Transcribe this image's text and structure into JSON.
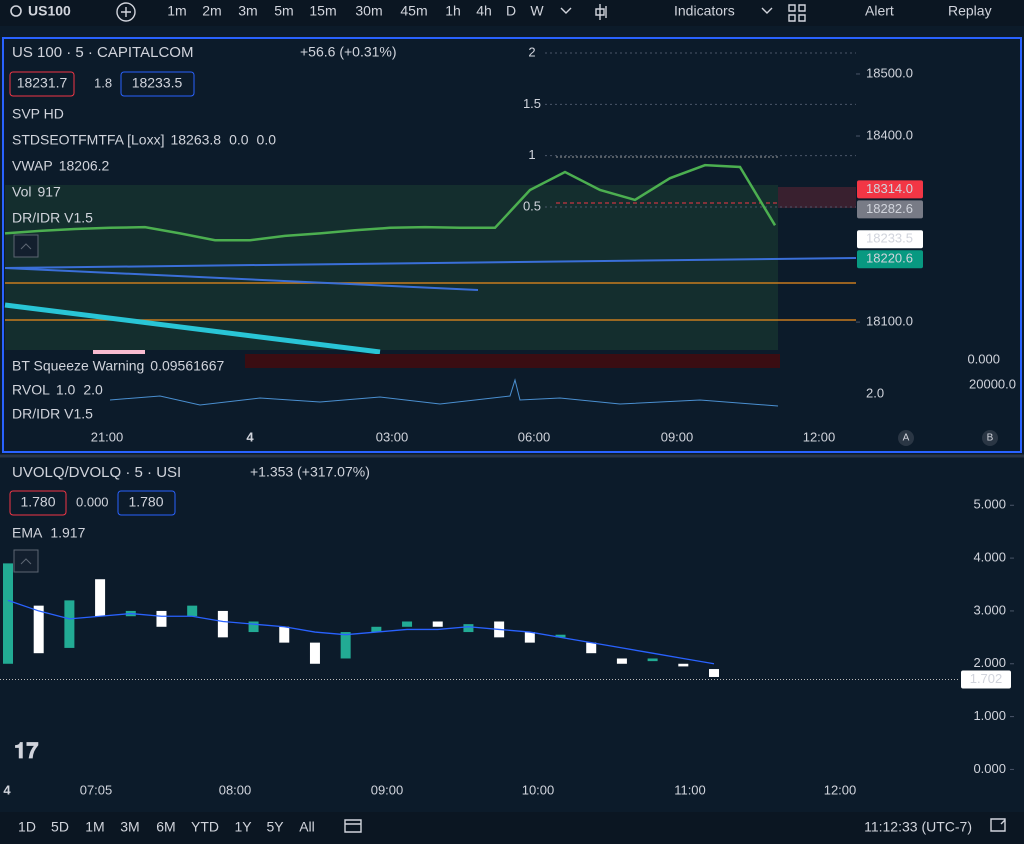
{
  "toolbar": {
    "symbol": "US100",
    "intervals": [
      "1m",
      "2m",
      "3m",
      "5m",
      "15m",
      "30m",
      "45m",
      "1h",
      "4h",
      "D",
      "W"
    ],
    "active_interval": 3,
    "indicators": "Indicators",
    "alert": "Alert",
    "replay": "Replay"
  },
  "main_pane": {
    "title": "US 100 · 5 · CAPITALCOM",
    "change": "+56.6 (+0.31%)",
    "bid": "18231.7",
    "spread": "1.8",
    "ask": "18233.5",
    "legend": [
      {
        "name": "SVP HD"
      },
      {
        "name": "STDSEOTFMTFA [Loxx]",
        "values": [
          "18263.8",
          "0.0",
          "0.0"
        ],
        "value_colors": [
          "#f23645",
          "#4caf50",
          "#f23645"
        ]
      },
      {
        "name": "VWAP",
        "values": [
          "18206.2"
        ],
        "value_colors": [
          "#b660cd"
        ]
      },
      {
        "name": "Vol",
        "values": [
          "917"
        ],
        "value_colors": [
          "#f23645"
        ]
      },
      {
        "name": "DR/IDR V1.5"
      }
    ],
    "left_scale": {
      "ylim": [
        0.5,
        2
      ],
      "ticks": [
        2,
        1.5,
        1,
        0.5
      ]
    },
    "ylim": [
      18055,
      18558
    ],
    "yticks": [
      {
        "value": 18500,
        "label": "18500.0"
      },
      {
        "value": 18400,
        "label": "18400.0"
      },
      {
        "value": 18100,
        "label": "18100.0"
      }
    ],
    "badges": [
      {
        "value": 18314,
        "label": "18314.0",
        "color": "#f23645"
      },
      {
        "value": 18282.6,
        "label": "18282.6",
        "color": "#787b86"
      },
      {
        "value": 18233.5,
        "label": "18233.5",
        "color": "#ffffff"
      },
      {
        "value": 18220.6,
        "label": "18220.6",
        "color": "#089981"
      }
    ],
    "price": [
      18243,
      18247,
      18250,
      18252,
      18253,
      18243,
      18232,
      18232,
      18239,
      18243,
      18248,
      18252,
      18253,
      18252,
      18252,
      18313,
      18342,
      18313,
      18297,
      18332,
      18353,
      18350,
      18256
    ],
    "price_color": "#4caf50",
    "sub_legend": [
      {
        "name": "BT Squeeze Warning",
        "values": [
          "0.09561667"
        ],
        "value_colors": [
          "#f23645"
        ]
      },
      {
        "name": "RVOL",
        "values": [
          "1.0",
          "2.0"
        ],
        "value_colors": [
          "#2962ff",
          "#2962ff"
        ]
      },
      {
        "name": "DR/IDR V1.5"
      }
    ],
    "sub_axis_labels": [
      "0.000",
      "20000.0",
      "2.0"
    ],
    "time_labels": [
      "21:00",
      "4",
      "03:00",
      "06:00",
      "09:00",
      "12:00"
    ],
    "markers": [
      "A",
      "B"
    ]
  },
  "lower_pane": {
    "title": "UVOLQ/DVOLQ · 5 · USI",
    "change": "+1.353 (+317.07%)",
    "bid": "1.780",
    "spread": "0.000",
    "ask": "1.780",
    "ema_label": "EMA",
    "ema_value": "1.917",
    "ylim": [
      -0.2,
      5.8
    ],
    "yticks": [
      {
        "value": 5,
        "label": "5.000"
      },
      {
        "value": 4,
        "label": "4.000"
      },
      {
        "value": 3,
        "label": "3.000"
      },
      {
        "value": 2,
        "label": "2.000"
      },
      {
        "value": 1,
        "label": "1.000"
      },
      {
        "value": 0,
        "label": "0.000"
      }
    ],
    "last": {
      "value": 1.702,
      "label": "1.702"
    },
    "open": [
      2.0,
      3.1,
      2.3,
      3.6,
      2.9,
      3.0,
      2.9,
      3.0,
      2.6,
      2.7,
      2.4,
      2.1,
      2.6,
      2.7,
      2.8,
      2.6,
      2.8,
      2.6,
      2.5,
      2.4,
      2.1,
      2.05,
      2.0,
      1.9
    ],
    "close": [
      3.9,
      2.2,
      3.2,
      2.9,
      3.0,
      2.7,
      3.1,
      2.5,
      2.8,
      2.4,
      2.0,
      2.6,
      2.7,
      2.8,
      2.7,
      2.75,
      2.5,
      2.4,
      2.55,
      2.2,
      2.0,
      2.1,
      1.95,
      1.75
    ],
    "ema": [
      3.2,
      3.0,
      2.85,
      2.9,
      2.95,
      2.9,
      2.9,
      2.8,
      2.75,
      2.7,
      2.6,
      2.55,
      2.6,
      2.65,
      2.65,
      2.7,
      2.65,
      2.6,
      2.5,
      2.4,
      2.3,
      2.2,
      2.1,
      2.0
    ],
    "up_color": "#22ab94",
    "down_color": "#ffffff",
    "ema_color": "#2962ff",
    "time_labels": [
      "4",
      "07:05",
      "08:00",
      "09:00",
      "10:00",
      "11:00",
      "12:00"
    ]
  },
  "bottom_bar": {
    "ranges": [
      "1D",
      "5D",
      "1M",
      "3M",
      "6M",
      "YTD",
      "1Y",
      "5Y",
      "All"
    ],
    "clock": "11:12:33 (UTC-7)"
  }
}
